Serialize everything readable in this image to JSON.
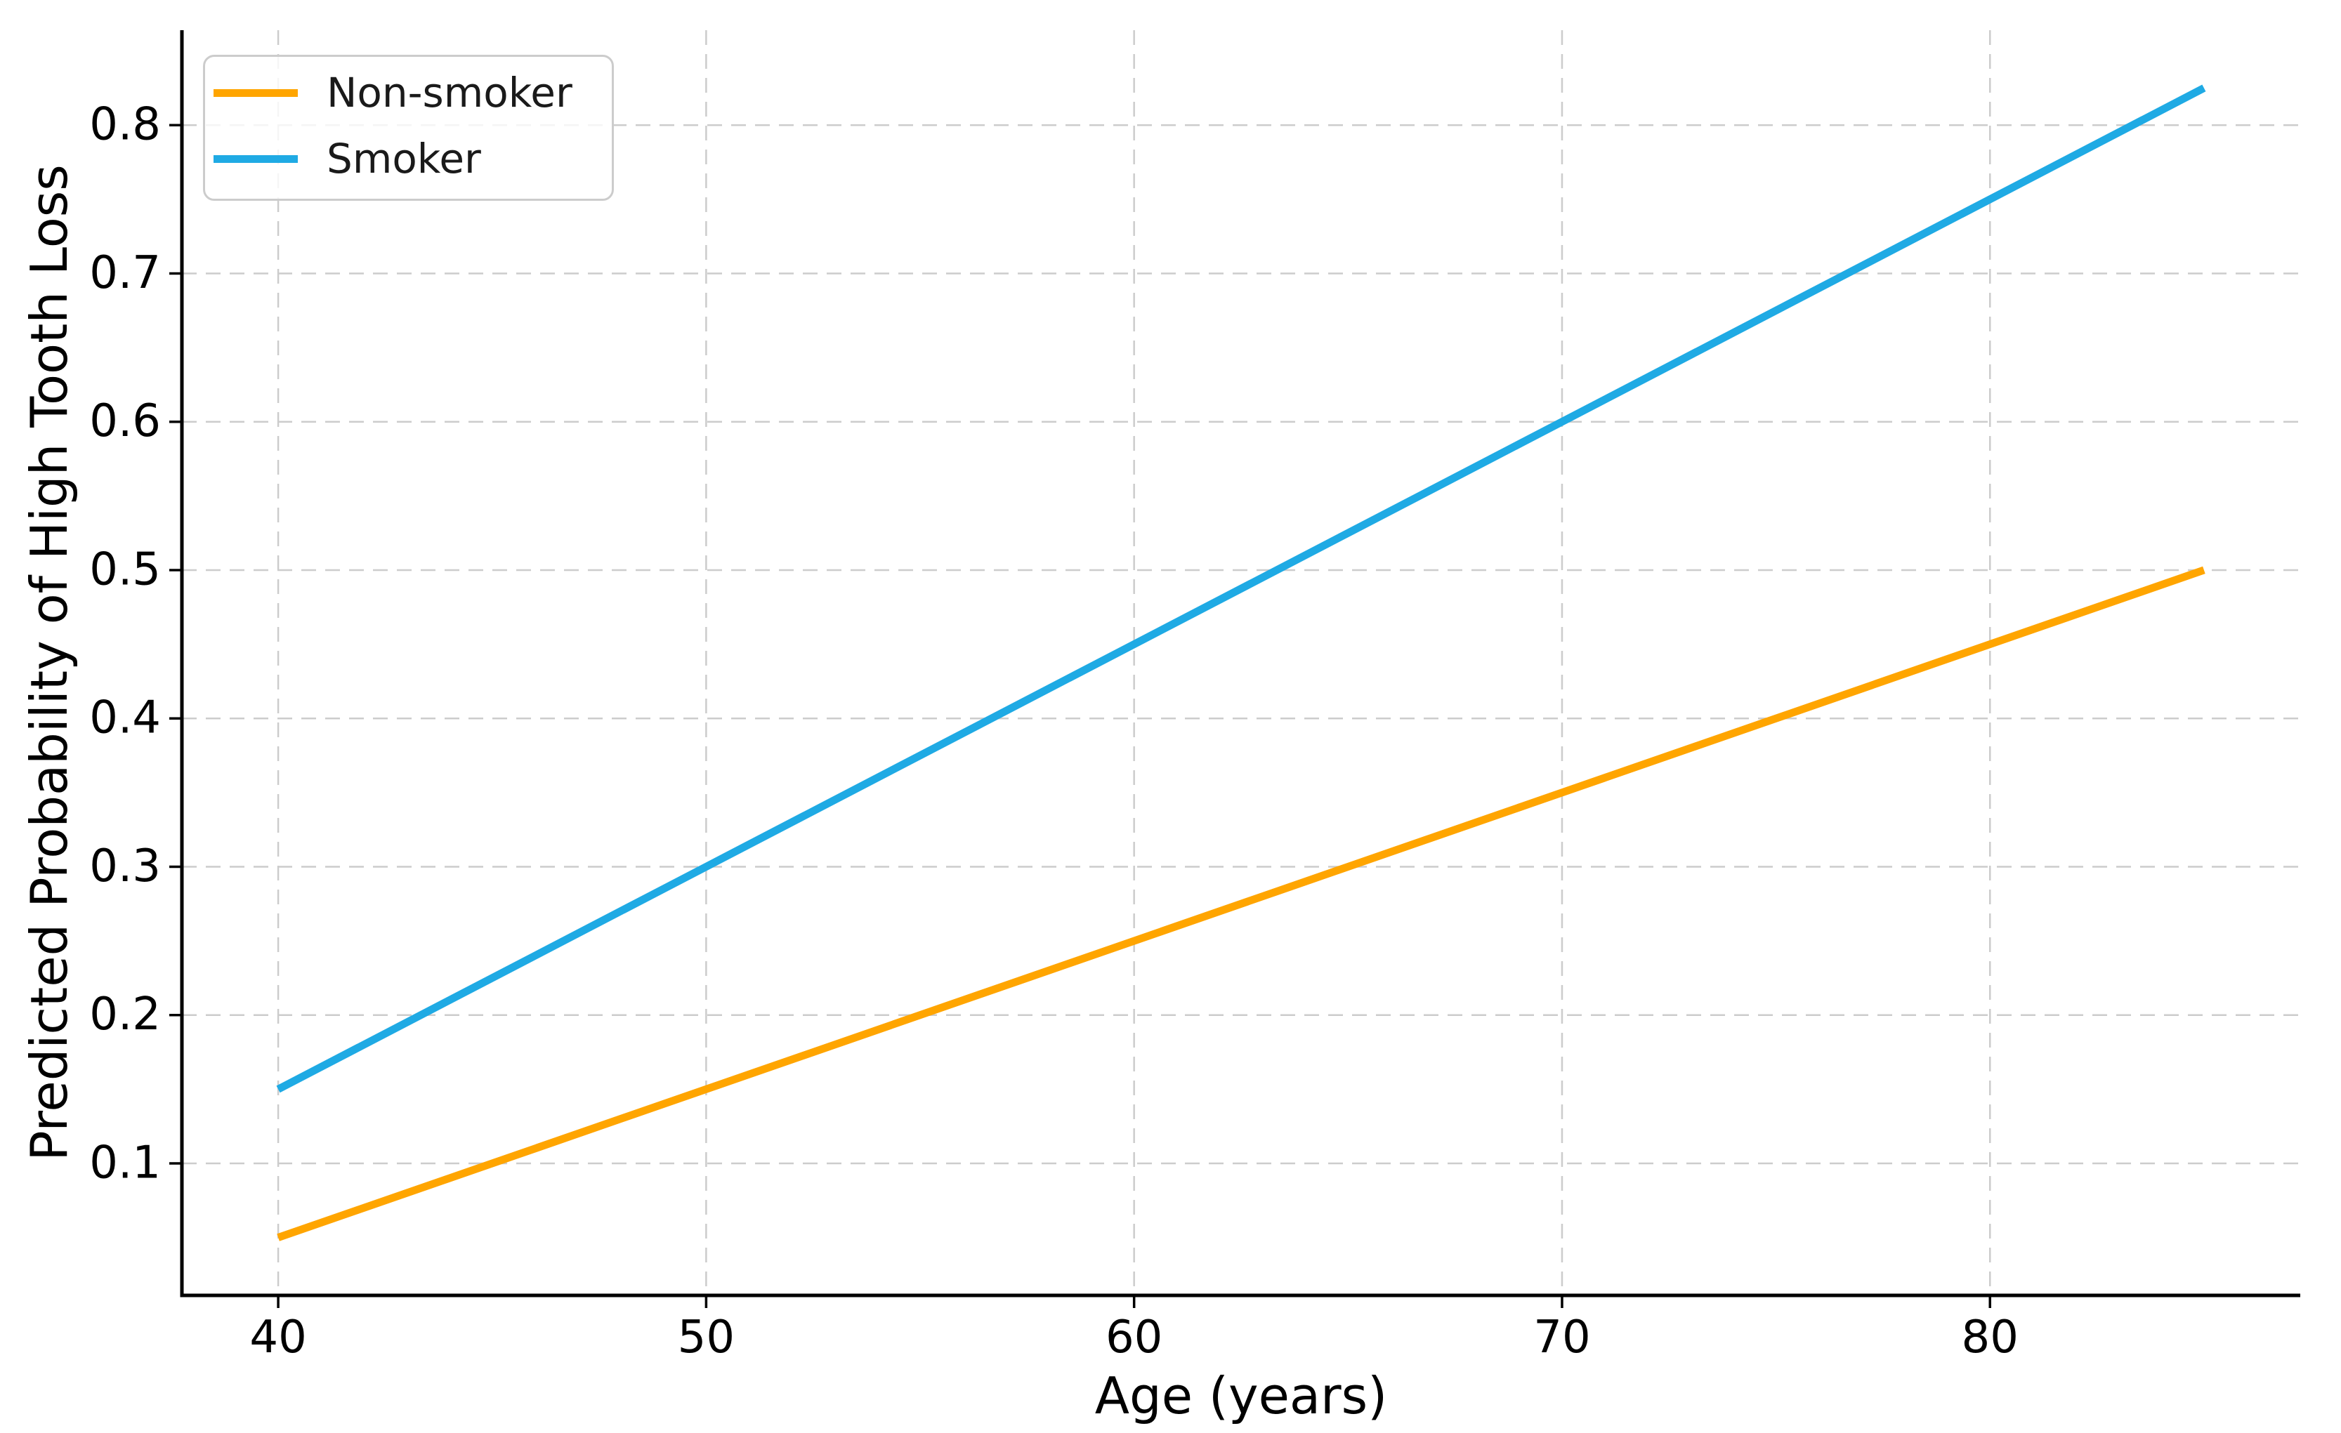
{
  "chart_data": {
    "type": "line",
    "title": "",
    "xlabel": "Age (years)",
    "ylabel": "Predicted Probability of High Tooth Loss",
    "xlim": [
      37.75,
      87.25
    ],
    "ylim": [
      0.011,
      0.864
    ],
    "xticks": [
      40,
      50,
      60,
      70,
      80
    ],
    "yticks": [
      0.1,
      0.2,
      0.3,
      0.4,
      0.5,
      0.6,
      0.7,
      0.8
    ],
    "grid": {
      "style": "dashed",
      "color": "#cccccc"
    },
    "axis_color": "#000000",
    "legend_position": "upper-left",
    "series": [
      {
        "name": "Non-smoker",
        "color": "#FFA500",
        "x": [
          40,
          85
        ],
        "y": [
          0.05,
          0.5
        ]
      },
      {
        "name": "Smoker",
        "color": "#1FAAE4",
        "x": [
          40,
          85
        ],
        "y": [
          0.15,
          0.825
        ]
      }
    ]
  }
}
